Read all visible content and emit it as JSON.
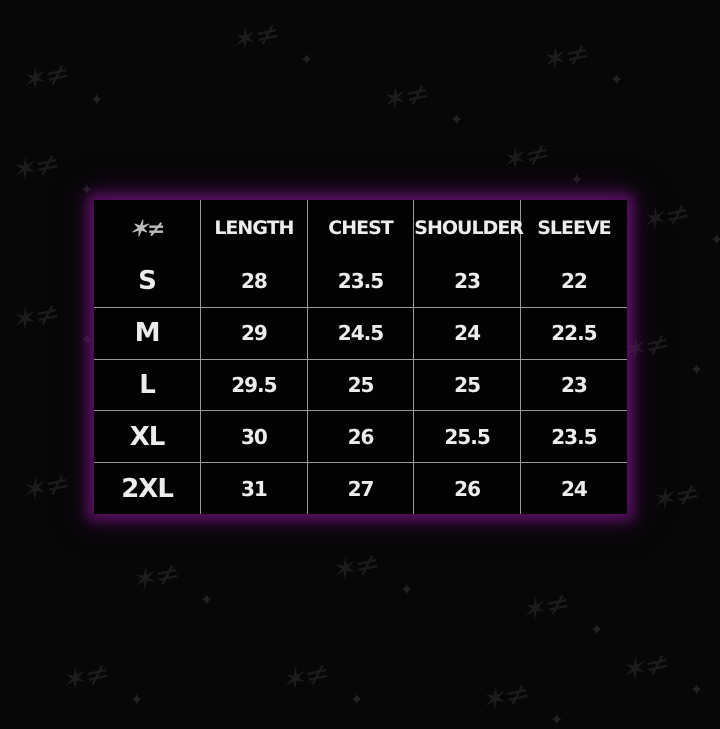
{
  "chart": {
    "headers": [
      "LENGTH",
      "CHEST",
      "SHOULDER",
      "SLEEVE"
    ],
    "rows": [
      {
        "size": "S",
        "values": [
          "28",
          "23.5",
          "23",
          "22"
        ]
      },
      {
        "size": "M",
        "values": [
          "29",
          "24.5",
          "24",
          "22.5"
        ]
      },
      {
        "size": "L",
        "values": [
          "29.5",
          "25",
          "25",
          "23"
        ]
      },
      {
        "size": "XL",
        "values": [
          "30",
          "26",
          "25.5",
          "23.5"
        ]
      },
      {
        "size": "2XL",
        "values": [
          "31",
          "27",
          "26",
          "24"
        ]
      }
    ]
  },
  "colors": {
    "background": "#070707",
    "glow": "#6e1478",
    "text": "#ececec",
    "grid": "#9a9a9a"
  },
  "icons": {
    "corner_logo": "graffiti-logo-icon",
    "background_pattern": "graffiti-watermark-pattern"
  }
}
